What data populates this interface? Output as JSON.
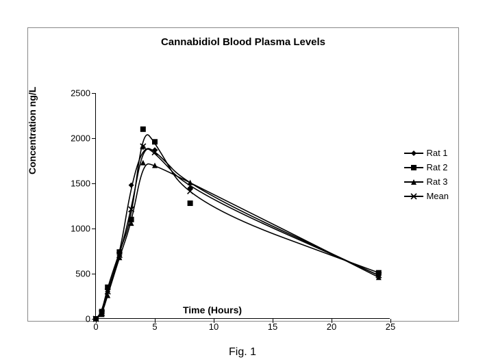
{
  "caption": "Fig. 1",
  "chart": {
    "type": "line",
    "title": "Cannabidiol Blood Plasma Levels",
    "title_fontsize": 15,
    "xlabel": "Time (Hours)",
    "ylabel": "Concentration ng/L",
    "label_fontsize": 14,
    "tick_fontsize": 13,
    "xlim": [
      0,
      25
    ],
    "ylim": [
      0,
      2500
    ],
    "xtick_step": 5,
    "ytick_step": 500,
    "background_color": "#ffffff",
    "frame_border_color": "#888888",
    "axis_color": "#000000",
    "line_color": "#000000",
    "line_width": 1.6,
    "marker_size": 8,
    "x": [
      0,
      0.5,
      1,
      2,
      3,
      4,
      5,
      8,
      24
    ],
    "series": [
      {
        "name": "Rat 1",
        "marker": "diamond",
        "y": [
          0,
          60,
          300,
          700,
          1480,
          1900,
          1870,
          1450,
          480
        ]
      },
      {
        "name": "Rat 2",
        "marker": "square",
        "y": [
          0,
          80,
          350,
          740,
          1100,
          2100,
          1960,
          1280,
          510
        ]
      },
      {
        "name": "Rat 3",
        "marker": "triangle",
        "y": [
          0,
          50,
          260,
          680,
          1060,
          1730,
          1700,
          1510,
          460
        ]
      },
      {
        "name": "Mean",
        "marker": "x",
        "y": [
          0,
          63,
          303,
          707,
          1213,
          1910,
          1843,
          1413,
          483
        ]
      }
    ]
  }
}
